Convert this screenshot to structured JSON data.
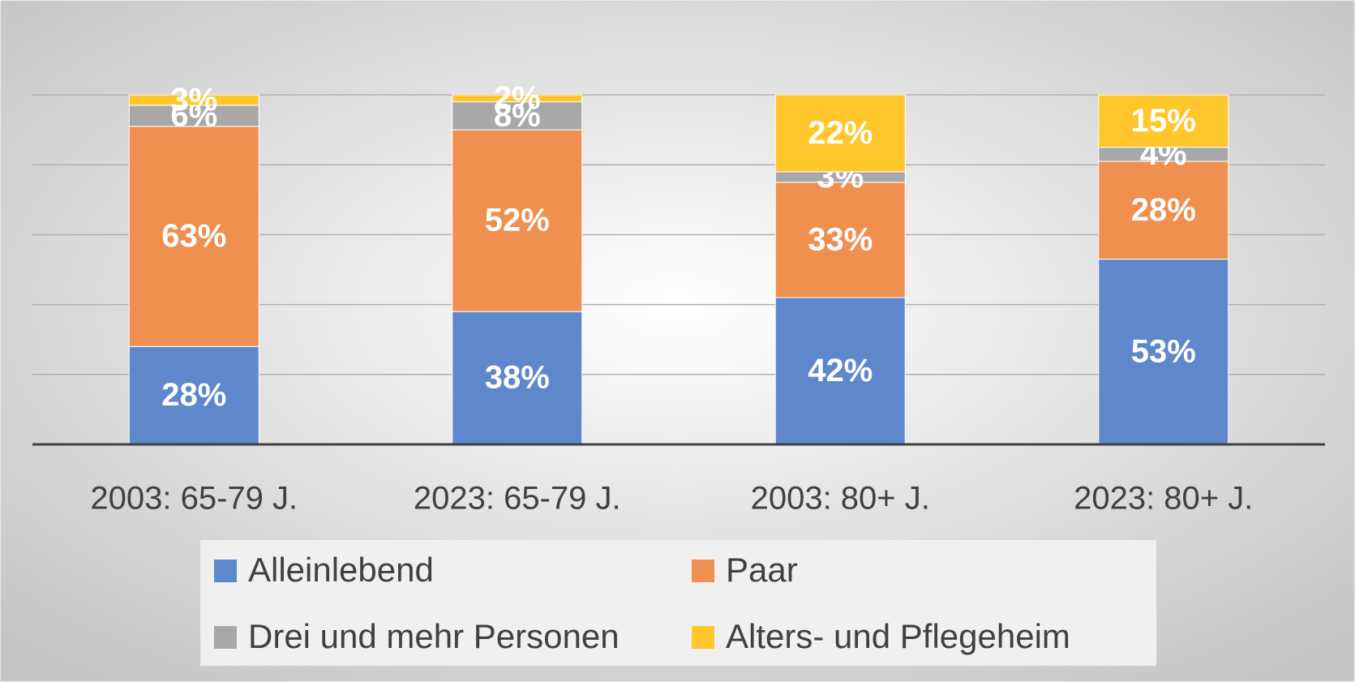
{
  "chart_data": {
    "type": "stacked_bar",
    "categories": [
      "2003: 65-79 J.",
      "2023: 65-79 J.",
      "2003: 80+ J.",
      "2023: 80+ J."
    ],
    "series": [
      {
        "name": "Alleinlebend",
        "color": "#5f87cc",
        "values": [
          28,
          38,
          42,
          53
        ],
        "value_labels": [
          "28%",
          "38%",
          "42%",
          "53%"
        ]
      },
      {
        "name": "Paar",
        "color": "#ef8f50",
        "values": [
          63,
          52,
          33,
          28
        ],
        "value_labels": [
          "63%",
          "52%",
          "33%",
          "28%"
        ]
      },
      {
        "name": "Drei und mehr Personen",
        "color": "#a8a8a8",
        "values": [
          6,
          8,
          3,
          4
        ],
        "value_labels": [
          "6%",
          "8%",
          "3%",
          "4%"
        ]
      },
      {
        "name": "Alters- und Pflegeheim",
        "color": "#ffc72c",
        "values": [
          3,
          2,
          22,
          15
        ],
        "value_labels": [
          "3%",
          "2%",
          "22%",
          "15%"
        ]
      }
    ],
    "ylim": [
      0,
      100
    ],
    "yticks": [
      0,
      20,
      40,
      60,
      80,
      100
    ],
    "grid": true,
    "legend": "bottom"
  }
}
